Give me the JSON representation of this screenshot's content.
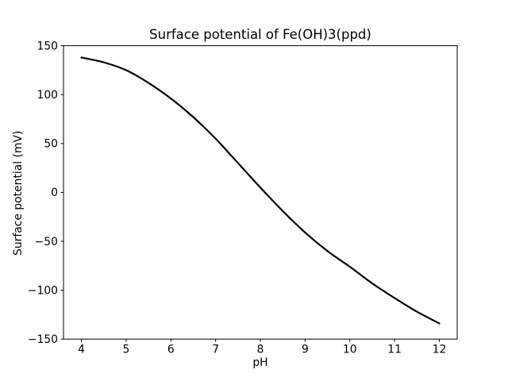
{
  "chart_data": {
    "type": "line",
    "title": "Surface potential of Fe(OH)3(ppd)",
    "xlabel": "pH",
    "ylabel": "Surface potential (mV)",
    "xlim": [
      3.6,
      12.4
    ],
    "ylim": [
      -150,
      150
    ],
    "grid": false,
    "legend": null,
    "line_color": "#000000",
    "x_ticks": [
      4,
      5,
      6,
      7,
      8,
      9,
      10,
      11,
      12
    ],
    "x_tick_labels": [
      "4",
      "5",
      "6",
      "7",
      "8",
      "9",
      "10",
      "11",
      "12"
    ],
    "y_ticks": [
      150,
      100,
      50,
      0,
      -50,
      -100,
      -150
    ],
    "y_tick_labels": [
      "150",
      "100",
      "50",
      "0",
      "−50",
      "−100",
      "−150"
    ],
    "series": [
      {
        "name": "Surface potential of Fe(OH)3(ppd)",
        "x": [
          4.0,
          4.5,
          5.0,
          5.5,
          6.0,
          6.5,
          7.0,
          7.5,
          8.0,
          8.5,
          9.0,
          9.5,
          10.0,
          10.5,
          11.0,
          11.5,
          12.0
        ],
        "y": [
          138,
          133,
          125,
          112,
          96,
          77,
          55,
          30,
          5,
          -19,
          -41,
          -60,
          -76,
          -93,
          -108,
          -122,
          -134
        ]
      }
    ]
  }
}
